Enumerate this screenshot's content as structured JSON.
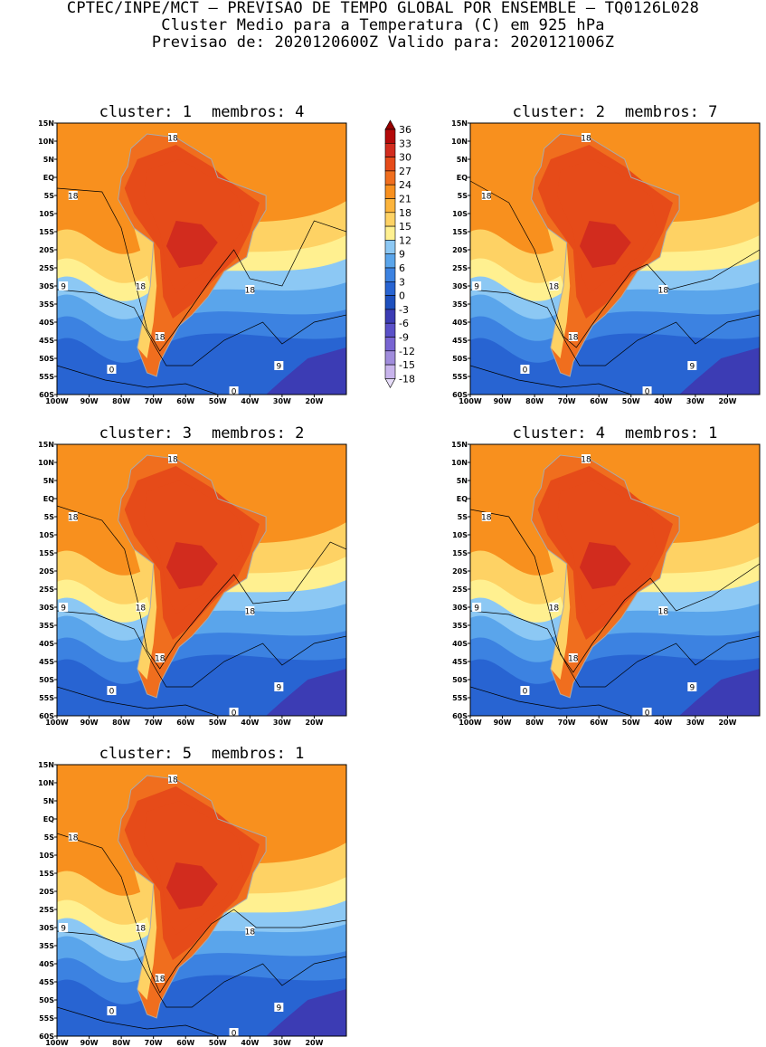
{
  "header": {
    "line1": "CPTEC/INPE/MCT – PREVISAO DE TEMPO GLOBAL POR ENSEMBLE – TQ0126L028",
    "line2": "Cluster Medio para a Temperatura (C) em 925 hPa",
    "line3": "Previsao de: 2020120600Z   Valido para: 2020121006Z"
  },
  "panels": [
    {
      "cluster_label": "cluster: 1",
      "membros_label": "membros: 4"
    },
    {
      "cluster_label": "cluster: 2",
      "membros_label": "membros: 7"
    },
    {
      "cluster_label": "cluster: 3",
      "membros_label": "membros: 2"
    },
    {
      "cluster_label": "cluster: 4",
      "membros_label": "membros: 1"
    },
    {
      "cluster_label": "cluster: 5",
      "membros_label": "membros: 1"
    }
  ],
  "lat_labels": [
    "15N",
    "10N",
    "5N",
    "EQ",
    "5S",
    "10S",
    "15S",
    "20S",
    "25S",
    "30S",
    "35S",
    "40S",
    "45S",
    "50S",
    "55S",
    "60S"
  ],
  "lon_labels": [
    "100W",
    "90W",
    "80W",
    "70W",
    "60W",
    "50W",
    "40W",
    "30W",
    "20W"
  ],
  "colorbar": {
    "levels": [
      "36",
      "33",
      "30",
      "27",
      "24",
      "21",
      "18",
      "15",
      "12",
      "9",
      "6",
      "3",
      "0",
      "-3",
      "-6",
      "-9",
      "-12",
      "-15",
      "-18"
    ],
    "colors": [
      "#960000",
      "#b40a0a",
      "#d22c1e",
      "#e64b19",
      "#f06e1e",
      "#f8901e",
      "#fcb43c",
      "#fed264",
      "#fff090",
      "#8cc8f4",
      "#5aa5eb",
      "#3c82e1",
      "#2864d2",
      "#1e50be",
      "#3c3cb4",
      "#5a50c8",
      "#7864d2",
      "#a08cdc",
      "#c8b4ec",
      "#e6dcf8"
    ]
  },
  "contour_labels": {
    "c18": "18",
    "c9": "9",
    "c0": "0"
  },
  "map_colors": {
    "bg_warm": "#f8901e",
    "ocean_cool1": "#fed264",
    "ocean_cool2": "#fff090",
    "ocean_blue1": "#8cc8f4",
    "ocean_blue2": "#5aa5eb",
    "ocean_blue3": "#3c82e1",
    "ocean_blue4": "#2864d2",
    "ocean_blue5": "#3c3cb4",
    "land_hot1": "#f06e1e",
    "land_hot2": "#e64b19",
    "land_hot3": "#d22c1e",
    "border_grey": "#aaaaaa",
    "contour": "#000000"
  }
}
